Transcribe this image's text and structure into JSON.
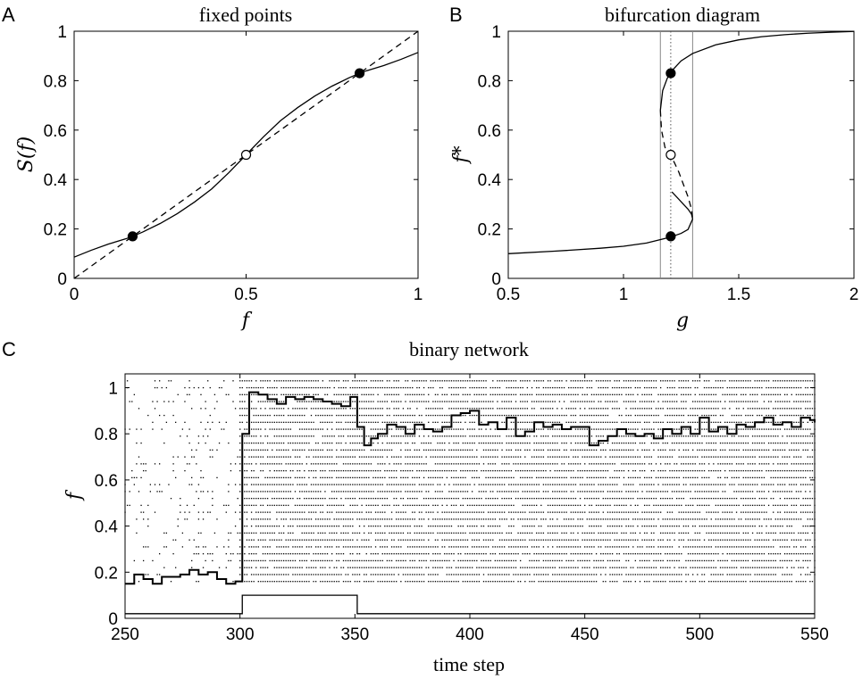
{
  "panels": {
    "A": {
      "letter": "A",
      "title": "fixed points",
      "xlabel": "f",
      "ylabel": "S(f)"
    },
    "B": {
      "letter": "B",
      "title": "bifurcation diagram",
      "xlabel": "g",
      "ylabel": "f*"
    },
    "C": {
      "letter": "C",
      "title": "binary network",
      "xlabel": "time step",
      "ylabel": "f"
    }
  },
  "chart_data": [
    {
      "id": "A",
      "type": "line",
      "title": "fixed points",
      "xlabel": "f",
      "ylabel": "S(f)",
      "xlim": [
        0,
        1
      ],
      "ylim": [
        0,
        1
      ],
      "xticks": [
        0,
        0.5,
        1
      ],
      "xtick_labels": [
        "0",
        "0.5",
        "1"
      ],
      "yticks": [
        0,
        0.2,
        0.4,
        0.6,
        0.8,
        1
      ],
      "ytick_labels": [
        "0",
        "0.2",
        "0.4",
        "0.6",
        "0.8",
        "1"
      ],
      "grid": false,
      "series": [
        {
          "style": "solid",
          "x": [
            0,
            0.05,
            0.1,
            0.15,
            0.17,
            0.2,
            0.25,
            0.3,
            0.35,
            0.4,
            0.45,
            0.5,
            0.55,
            0.6,
            0.65,
            0.7,
            0.75,
            0.8,
            0.83,
            0.85,
            0.9,
            0.95,
            1
          ],
          "y": [
            0.086,
            0.114,
            0.139,
            0.16,
            0.17,
            0.188,
            0.222,
            0.262,
            0.309,
            0.362,
            0.428,
            0.5,
            0.572,
            0.638,
            0.691,
            0.738,
            0.778,
            0.812,
            0.83,
            0.84,
            0.861,
            0.886,
            0.914
          ]
        },
        {
          "style": "dashed",
          "x": [
            0,
            1
          ],
          "y": [
            0,
            1
          ]
        }
      ],
      "points": [
        {
          "x": 0.17,
          "y": 0.17,
          "filled": true
        },
        {
          "x": 0.5,
          "y": 0.5,
          "filled": false
        },
        {
          "x": 0.83,
          "y": 0.83,
          "filled": true
        }
      ]
    },
    {
      "id": "B",
      "type": "line",
      "title": "bifurcation diagram",
      "xlabel": "g",
      "ylabel": "f*",
      "xlim": [
        0.5,
        2
      ],
      "ylim": [
        0,
        1
      ],
      "xticks": [
        0.5,
        1,
        1.5,
        2
      ],
      "xtick_labels": [
        "0.5",
        "1",
        "1.5",
        "2"
      ],
      "yticks": [
        0,
        0.2,
        0.4,
        0.6,
        0.8,
        1
      ],
      "ytick_labels": [
        "0",
        "0.2",
        "0.4",
        "0.6",
        "0.8",
        "1"
      ],
      "grid": false,
      "series": [
        {
          "style": "solid",
          "x": [
            0.5,
            0.7,
            0.9,
            1.0,
            1.1,
            1.2,
            1.25,
            1.28,
            1.3,
            1.295,
            1.28,
            1.26,
            1.24,
            1.22,
            1.21
          ],
          "y": [
            0.1,
            0.11,
            0.122,
            0.13,
            0.143,
            0.166,
            0.182,
            0.198,
            0.24,
            0.26,
            0.28,
            0.3,
            0.32,
            0.34,
            0.35
          ]
        },
        {
          "style": "dashed",
          "x": [
            1.16,
            1.165,
            1.18,
            1.2,
            1.22,
            1.24,
            1.26,
            1.28,
            1.295,
            1.3
          ],
          "y": [
            0.68,
            0.6,
            0.53,
            0.5,
            0.47,
            0.43,
            0.38,
            0.33,
            0.28,
            0.24
          ]
        },
        {
          "style": "solid",
          "x": [
            1.16,
            1.17,
            1.19,
            1.21,
            1.25,
            1.3,
            1.4,
            1.5,
            1.6,
            1.7,
            1.8,
            1.9,
            2.0
          ],
          "y": [
            0.68,
            0.76,
            0.81,
            0.84,
            0.88,
            0.91,
            0.945,
            0.965,
            0.978,
            0.986,
            0.992,
            0.996,
            0.999
          ]
        }
      ],
      "vlines": [
        {
          "x": 1.16,
          "style": "solid"
        },
        {
          "x": 1.205,
          "style": "dotted"
        },
        {
          "x": 1.3,
          "style": "solid"
        }
      ],
      "points": [
        {
          "x": 1.205,
          "y": 0.83,
          "filled": true
        },
        {
          "x": 1.205,
          "y": 0.5,
          "filled": false
        },
        {
          "x": 1.205,
          "y": 0.17,
          "filled": true
        }
      ]
    },
    {
      "id": "C",
      "type": "line",
      "title": "binary network",
      "xlabel": "time step",
      "ylabel": "f",
      "xlim": [
        250,
        550
      ],
      "ylim": [
        0,
        1.06
      ],
      "xticks": [
        250,
        300,
        350,
        400,
        450,
        500,
        550
      ],
      "xtick_labels": [
        "250",
        "300",
        "350",
        "400",
        "450",
        "500",
        "550"
      ],
      "yticks": [
        0,
        0.2,
        0.4,
        0.6,
        0.8,
        1
      ],
      "ytick_labels": [
        "0",
        "0.2",
        "0.4",
        "0.6",
        "0.8",
        "1"
      ],
      "grid": false,
      "raster": {
        "rows": 30,
        "row_spacing": 0.03,
        "first_row": 0.16,
        "pre_stimulus_density": 0.18,
        "post_stimulus_density": 0.85,
        "switch_time": 300
      },
      "series": [
        {
          "name": "activity",
          "style": "step",
          "x": [
            250,
            254,
            258,
            262,
            266,
            270,
            274,
            278,
            282,
            286,
            290,
            294,
            298,
            301,
            304,
            308,
            312,
            316,
            320,
            324,
            328,
            332,
            336,
            340,
            344,
            348,
            351,
            354,
            357,
            360,
            364,
            368,
            372,
            376,
            380,
            384,
            388,
            392,
            396,
            400,
            404,
            408,
            412,
            416,
            420,
            424,
            428,
            432,
            436,
            440,
            444,
            448,
            452,
            456,
            460,
            464,
            468,
            472,
            476,
            480,
            484,
            488,
            492,
            496,
            500,
            504,
            508,
            512,
            516,
            520,
            524,
            528,
            532,
            536,
            540,
            544,
            548,
            550
          ],
          "y": [
            0.15,
            0.19,
            0.17,
            0.15,
            0.18,
            0.18,
            0.19,
            0.21,
            0.19,
            0.2,
            0.17,
            0.15,
            0.16,
            0.8,
            0.98,
            0.97,
            0.95,
            0.93,
            0.96,
            0.95,
            0.96,
            0.95,
            0.94,
            0.93,
            0.92,
            0.96,
            0.83,
            0.75,
            0.78,
            0.8,
            0.84,
            0.83,
            0.8,
            0.84,
            0.82,
            0.81,
            0.83,
            0.88,
            0.89,
            0.9,
            0.84,
            0.85,
            0.82,
            0.87,
            0.79,
            0.81,
            0.85,
            0.83,
            0.84,
            0.82,
            0.83,
            0.83,
            0.75,
            0.77,
            0.79,
            0.82,
            0.8,
            0.79,
            0.8,
            0.78,
            0.82,
            0.8,
            0.83,
            0.8,
            0.87,
            0.81,
            0.83,
            0.8,
            0.84,
            0.83,
            0.85,
            0.87,
            0.84,
            0.85,
            0.83,
            0.87,
            0.86,
            0.85
          ]
        },
        {
          "name": "stimulus",
          "style": "step",
          "x": [
            250,
            300,
            301,
            350,
            351,
            550
          ],
          "y": [
            0.02,
            0.02,
            0.1,
            0.1,
            0.02,
            0.02
          ]
        }
      ]
    }
  ]
}
